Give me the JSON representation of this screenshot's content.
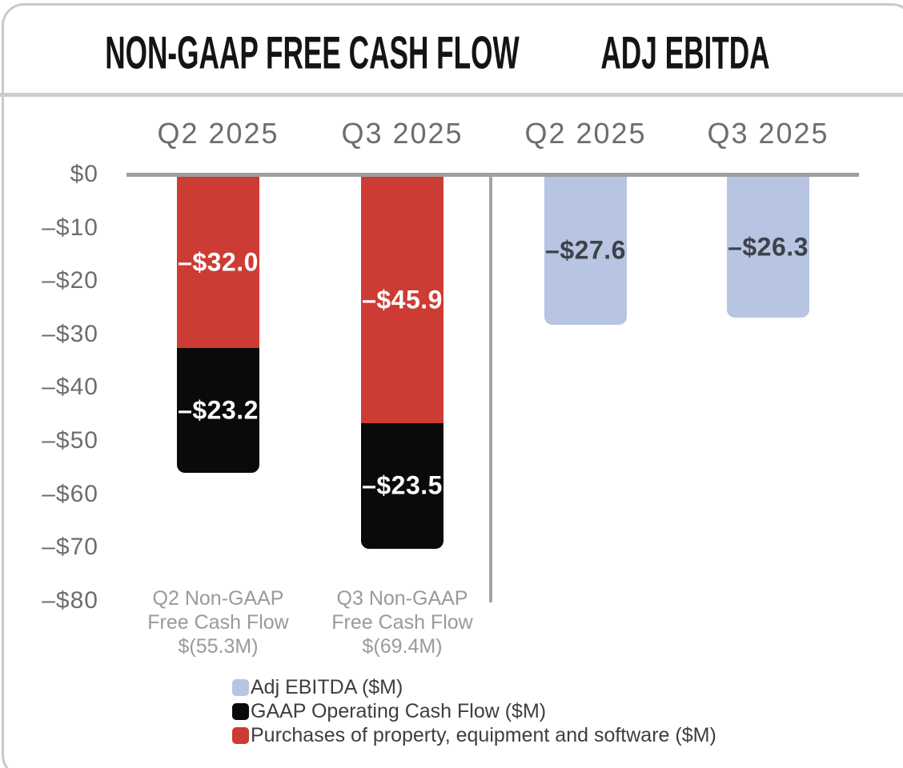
{
  "header": {
    "left_title": "NON-GAAP FREE CASH FLOW",
    "right_title": "ADJ EBITDA"
  },
  "colors": {
    "red": "#cd3c34",
    "black": "#0a0a0a",
    "blue": "#b7c5e2",
    "axis_line": "#9e9e9e",
    "white_label": "#ffffff",
    "dark_label": "#3d4249"
  },
  "chart_data": {
    "type": "bar",
    "orientation": "vertical-stacked-negative",
    "y_axis": {
      "ticks": [
        "$0",
        "–$10",
        "–$20",
        "–$30",
        "–$40",
        "–$50",
        "–$60",
        "–$70",
        "–$80"
      ],
      "tick_values": [
        0,
        -10,
        -20,
        -30,
        -40,
        -50,
        -60,
        -70,
        -80
      ],
      "range": [
        0,
        -80
      ],
      "grid": false
    },
    "sections": [
      {
        "title": "NON-GAAP FREE CASH FLOW",
        "columns": [
          {
            "header": "Q2 2025",
            "total": -55.3,
            "segments": [
              {
                "series": "Purchases of property, equipment and software ($M)",
                "value": -32.0,
                "label": "–$32.0",
                "color": "#cd3c34",
                "label_color": "#ffffff"
              },
              {
                "series": "GAAP Operating Cash Flow ($M)",
                "value": -23.2,
                "label": "–$23.2",
                "color": "#0a0a0a",
                "label_color": "#ffffff"
              }
            ],
            "footnote_lines": [
              "Q2 Non-GAAP",
              "Free Cash Flow",
              "$(55.3M)"
            ]
          },
          {
            "header": "Q3 2025",
            "total": -69.4,
            "segments": [
              {
                "series": "Purchases of property, equipment and software ($M)",
                "value": -45.9,
                "label": "–$45.9",
                "color": "#cd3c34",
                "label_color": "#ffffff"
              },
              {
                "series": "GAAP Operating Cash Flow ($M)",
                "value": -23.5,
                "label": "–$23.5",
                "color": "#0a0a0a",
                "label_color": "#ffffff"
              }
            ],
            "footnote_lines": [
              "Q3 Non-GAAP",
              "Free Cash Flow",
              "$(69.4M)"
            ]
          }
        ]
      },
      {
        "title": "ADJ EBITDA",
        "columns": [
          {
            "header": "Q2 2025",
            "total": -27.6,
            "segments": [
              {
                "series": "Adj EBITDA ($M)",
                "value": -27.6,
                "label": "–$27.6",
                "color": "#b7c5e2",
                "label_color": "#3d4249"
              }
            ],
            "footnote_lines": []
          },
          {
            "header": "Q3 2025",
            "total": -26.3,
            "segments": [
              {
                "series": "Adj EBITDA ($M)",
                "value": -26.3,
                "label": "–$26.3",
                "color": "#b7c5e2",
                "label_color": "#3d4249"
              }
            ],
            "footnote_lines": []
          }
        ]
      }
    ],
    "legend": [
      {
        "label": "Adj EBITDA ($M)",
        "color": "#b7c5e2"
      },
      {
        "label": "GAAP Operating Cash Flow ($M)",
        "color": "#0a0a0a"
      },
      {
        "label": "Purchases of property, equipment and software ($M)",
        "color": "#cd3c34"
      }
    ]
  }
}
